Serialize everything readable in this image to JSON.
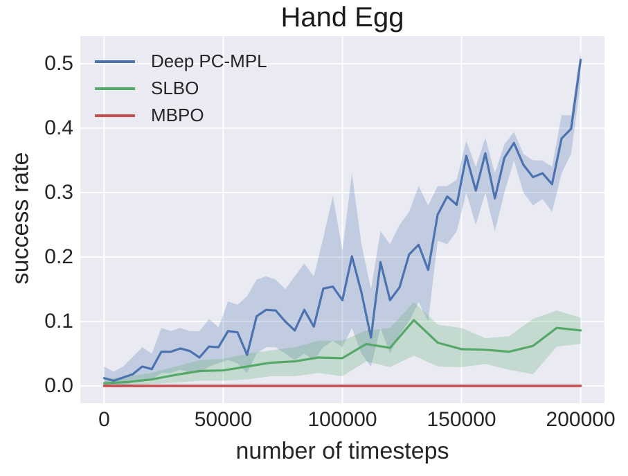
{
  "chart_data": {
    "type": "line",
    "title": "Hand Egg",
    "xlabel": "number of timesteps",
    "ylabel": "success rate",
    "xlim": [
      -10000,
      210000
    ],
    "ylim": [
      -0.027,
      0.543
    ],
    "x_ticks": [
      0,
      50000,
      100000,
      150000,
      200000
    ],
    "x_tick_labels": [
      "0",
      "50000",
      "100000",
      "150000",
      "200000"
    ],
    "y_ticks": [
      0.0,
      0.1,
      0.2,
      0.3,
      0.4,
      0.5
    ],
    "y_tick_labels": [
      "0.0",
      "0.1",
      "0.2",
      "0.3",
      "0.4",
      "0.5"
    ],
    "grid": true,
    "legend_position": "upper-left",
    "plot_background": "#eaeaf2",
    "grid_color": "#ffffff",
    "text_color": "#262626",
    "series": [
      {
        "name": "Deep PC-MPL",
        "color": "#4c72b0",
        "x": [
          0,
          4000,
          8000,
          12000,
          16000,
          20000,
          24000,
          28000,
          32000,
          36000,
          40000,
          44000,
          48000,
          52000,
          56000,
          60000,
          64000,
          68000,
          72000,
          76000,
          80000,
          84000,
          88000,
          92000,
          96000,
          100000,
          104000,
          108000,
          112000,
          116000,
          120000,
          124000,
          128000,
          132000,
          136000,
          140000,
          144000,
          148000,
          152000,
          156000,
          160000,
          164000,
          168000,
          172000,
          176000,
          180000,
          184000,
          188000,
          192000,
          196000,
          200000
        ],
        "y": [
          0.012,
          0.008,
          0.013,
          0.018,
          0.03,
          0.026,
          0.053,
          0.053,
          0.058,
          0.054,
          0.044,
          0.061,
          0.06,
          0.085,
          0.083,
          0.048,
          0.108,
          0.118,
          0.117,
          0.1,
          0.086,
          0.118,
          0.092,
          0.151,
          0.154,
          0.133,
          0.201,
          0.145,
          0.075,
          0.192,
          0.133,
          0.153,
          0.204,
          0.219,
          0.18,
          0.266,
          0.294,
          0.281,
          0.357,
          0.303,
          0.361,
          0.291,
          0.354,
          0.377,
          0.343,
          0.324,
          0.33,
          0.313,
          0.384,
          0.399,
          0.506
        ],
        "band_lower": [
          0.0,
          0.0,
          0.0,
          0.005,
          0.01,
          0.01,
          0.02,
          0.02,
          0.025,
          0.02,
          0.02,
          0.03,
          0.035,
          0.04,
          0.035,
          0.02,
          0.05,
          0.06,
          0.06,
          0.05,
          0.04,
          0.05,
          0.04,
          0.06,
          0.07,
          0.06,
          0.09,
          0.05,
          0.03,
          0.09,
          0.05,
          0.08,
          0.1,
          0.13,
          0.1,
          0.225,
          0.22,
          0.24,
          0.3,
          0.25,
          0.3,
          0.24,
          0.3,
          0.35,
          0.3,
          0.28,
          0.29,
          0.27,
          0.33,
          0.36,
          0.47
        ],
        "band_upper": [
          0.03,
          0.022,
          0.03,
          0.045,
          0.06,
          0.05,
          0.09,
          0.085,
          0.09,
          0.085,
          0.085,
          0.104,
          0.091,
          0.131,
          0.126,
          0.139,
          0.165,
          0.17,
          0.165,
          0.15,
          0.17,
          0.19,
          0.17,
          0.23,
          0.295,
          0.21,
          0.33,
          0.22,
          0.15,
          0.24,
          0.22,
          0.25,
          0.27,
          0.31,
          0.28,
          0.31,
          0.31,
          0.32,
          0.38,
          0.34,
          0.385,
          0.33,
          0.375,
          0.394,
          0.36,
          0.35,
          0.35,
          0.34,
          0.42,
          0.42,
          0.52
        ]
      },
      {
        "name": "SLBO",
        "color": "#55a868",
        "x": [
          0,
          10000,
          20000,
          30000,
          40000,
          50000,
          60000,
          70000,
          80000,
          90000,
          100000,
          110000,
          120000,
          130000,
          140000,
          150000,
          160000,
          170000,
          180000,
          190000,
          200000
        ],
        "y": [
          0.004,
          0.006,
          0.01,
          0.017,
          0.023,
          0.024,
          0.03,
          0.036,
          0.038,
          0.044,
          0.043,
          0.065,
          0.059,
          0.102,
          0.067,
          0.057,
          0.056,
          0.053,
          0.062,
          0.09,
          0.086
        ],
        "band_lower": [
          0.0,
          0.0,
          0.003,
          0.005,
          0.008,
          0.008,
          0.01,
          0.015,
          0.015,
          0.02,
          0.015,
          0.038,
          0.029,
          0.047,
          0.03,
          0.029,
          0.034,
          0.025,
          0.018,
          0.061,
          0.065
        ],
        "band_upper": [
          0.01,
          0.015,
          0.02,
          0.03,
          0.04,
          0.042,
          0.05,
          0.055,
          0.06,
          0.07,
          0.07,
          0.086,
          0.09,
          0.13,
          0.095,
          0.09,
          0.074,
          0.077,
          0.104,
          0.117,
          0.106
        ]
      },
      {
        "name": "MBPO",
        "color": "#c44e52",
        "x": [
          0,
          200000
        ],
        "y": [
          0.0,
          0.0
        ]
      }
    ]
  }
}
